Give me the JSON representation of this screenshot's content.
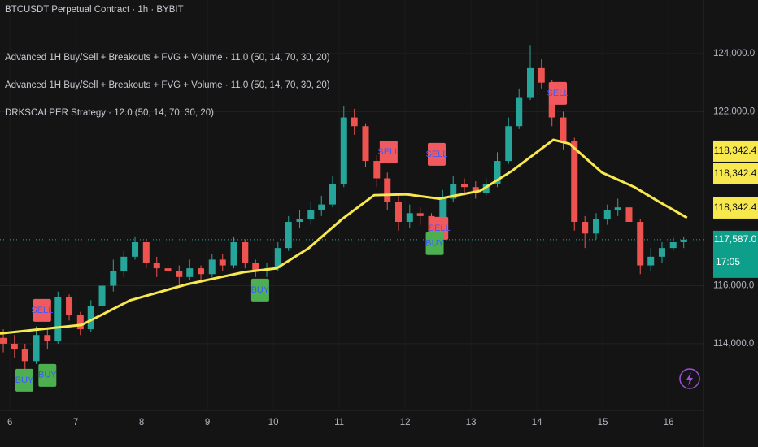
{
  "chart_data": {
    "type": "candlestick",
    "title": "BTCUSDT Perpetual Contract · 1h · BYBIT",
    "indicators": [
      "Advanced 1H Buy/Sell + Breakouts + FVG + Volume · 11.0 (50, 14, 70, 30, 20)",
      "Advanced 1H Buy/Sell + Breakouts + FVG + Volume · 11.0 (50, 14, 70, 30, 20)",
      "DRKSCALPER Strategy · 12.0 (50, 14, 70, 30, 20)"
    ],
    "x": [
      5.9,
      6.07,
      6.23,
      6.4,
      6.57,
      6.73,
      6.9,
      7.07,
      7.23,
      7.4,
      7.57,
      7.73,
      7.9,
      8.07,
      8.23,
      8.4,
      8.57,
      8.73,
      8.9,
      9.07,
      9.23,
      9.4,
      9.57,
      9.73,
      9.9,
      10.07,
      10.23,
      10.4,
      10.57,
      10.73,
      10.9,
      11.07,
      11.23,
      11.4,
      11.57,
      11.73,
      11.9,
      12.07,
      12.23,
      12.4,
      12.57,
      12.73,
      12.9,
      13.07,
      13.23,
      13.4,
      13.57,
      13.73,
      13.9,
      14.07,
      14.23,
      14.4,
      14.57,
      14.73,
      14.9,
      15.07,
      15.23,
      15.4,
      15.57,
      15.73,
      15.9,
      16.07,
      16.23
    ],
    "open": [
      114200,
      114000,
      113800,
      113400,
      114300,
      114100,
      115600,
      115000,
      114500,
      115300,
      116000,
      116500,
      117000,
      117500,
      116800,
      116600,
      116500,
      116300,
      116600,
      116400,
      116900,
      116700,
      117500,
      116800,
      116500,
      116600,
      117300,
      118200,
      118300,
      118600,
      118800,
      119500,
      121800,
      121500,
      120300,
      119700,
      118900,
      118200,
      118500,
      118400,
      117800,
      119000,
      119500,
      119400,
      119200,
      119500,
      120300,
      121500,
      122500,
      123500,
      123000,
      121800,
      121000,
      118200,
      117800,
      118300,
      118600,
      118700,
      118200,
      116700,
      117000,
      117300,
      117500
    ],
    "high": [
      114500,
      114300,
      114000,
      114600,
      114500,
      115800,
      115700,
      115100,
      115500,
      116300,
      116900,
      117200,
      117700,
      117600,
      117000,
      116900,
      116700,
      116900,
      116700,
      117100,
      117100,
      117700,
      117600,
      116900,
      116800,
      117500,
      118400,
      118600,
      118900,
      119100,
      119800,
      122200,
      122100,
      121600,
      120500,
      119900,
      119100,
      118800,
      118700,
      118500,
      119300,
      119800,
      119700,
      119600,
      119700,
      120600,
      121800,
      122800,
      124300,
      123800,
      123100,
      122000,
      121100,
      118400,
      118500,
      118800,
      119000,
      118900,
      118300,
      117300,
      117500,
      117700,
      117700
    ],
    "low": [
      113700,
      113500,
      113100,
      113300,
      113800,
      114000,
      114800,
      114300,
      114400,
      115200,
      115800,
      116300,
      116900,
      116600,
      116300,
      116200,
      116000,
      116200,
      116100,
      116300,
      116500,
      116600,
      116600,
      116300,
      116300,
      116500,
      117200,
      118000,
      118100,
      118400,
      118700,
      119400,
      121200,
      120100,
      119400,
      118600,
      117900,
      118000,
      118100,
      117500,
      117700,
      118900,
      119100,
      119000,
      119100,
      119400,
      120200,
      121400,
      122400,
      122800,
      121500,
      120700,
      117900,
      117300,
      117600,
      118100,
      118400,
      118000,
      116400,
      116500,
      116800,
      117200,
      117300
    ],
    "close": [
      114000,
      113800,
      113400,
      114300,
      114100,
      115600,
      115000,
      114500,
      115300,
      116000,
      116500,
      117000,
      117500,
      116800,
      116600,
      116500,
      116300,
      116600,
      116400,
      116900,
      116700,
      117500,
      116800,
      116500,
      116600,
      117300,
      118200,
      118300,
      118600,
      118800,
      119500,
      121800,
      121500,
      120300,
      119700,
      118900,
      118200,
      118500,
      118400,
      117800,
      119000,
      119500,
      119400,
      119200,
      119500,
      120300,
      121500,
      122500,
      123500,
      123000,
      121800,
      121000,
      118200,
      117800,
      118300,
      118600,
      118700,
      118200,
      116700,
      117000,
      117300,
      117500,
      117587
    ],
    "up_color": "#26a69a",
    "down_color": "#ef5350",
    "ma": {
      "color": "#f7e84e",
      "x": [
        5.85,
        7.09,
        7.83,
        8.69,
        9.56,
        10.05,
        10.54,
        11.04,
        11.53,
        12.02,
        12.52,
        13.14,
        13.63,
        14.25,
        14.49,
        14.99,
        15.48,
        15.85,
        16.28
      ],
      "values": [
        114350,
        114650,
        115500,
        116050,
        116470,
        116600,
        117300,
        118290,
        119120,
        119150,
        119000,
        119270,
        119970,
        121030,
        120900,
        119900,
        119400,
        118900,
        118342.4
      ]
    },
    "signals": [
      {
        "text": "BUY",
        "x": 6.22,
        "price": 112740
      },
      {
        "text": "SELL",
        "x": 6.49,
        "price": 115150
      },
      {
        "text": "BUY",
        "x": 6.57,
        "price": 112910
      },
      {
        "text": "BUY",
        "x": 9.8,
        "price": 115850
      },
      {
        "text": "SELL",
        "x": 11.75,
        "price": 120610
      },
      {
        "text": "SELL",
        "x": 12.48,
        "price": 120530
      },
      {
        "text": "SELL",
        "x": 12.52,
        "price": 117980
      },
      {
        "text": "BUY",
        "x": 12.45,
        "price": 117450
      },
      {
        "text": "SELL",
        "x": 14.32,
        "price": 122630
      }
    ],
    "sell_color": "#f05a5f",
    "buy_color": "#4caf50",
    "xlim": [
      5.85,
      16.53
    ],
    "xticks": [
      6,
      7,
      8,
      9,
      10,
      11,
      12,
      13,
      14,
      15,
      16
    ],
    "ylim": [
      111700,
      125850
    ],
    "yticks": [
      {
        "value": 114000,
        "label": "114,000.0"
      },
      {
        "value": 116000,
        "label": "116,000.0"
      },
      {
        "value": 122000,
        "label": "122,000.0"
      },
      {
        "value": 124000,
        "label": "124,000.0"
      }
    ],
    "price_labels": [
      {
        "value": 118342.4,
        "label": "118,342.4"
      },
      {
        "value": 118342.4,
        "label": "118,342.4"
      },
      {
        "value": 118342.4,
        "label": "118,342.4"
      }
    ],
    "last_price": {
      "value": 117587,
      "label": "117,587.0"
    },
    "countdown": "17:05"
  }
}
